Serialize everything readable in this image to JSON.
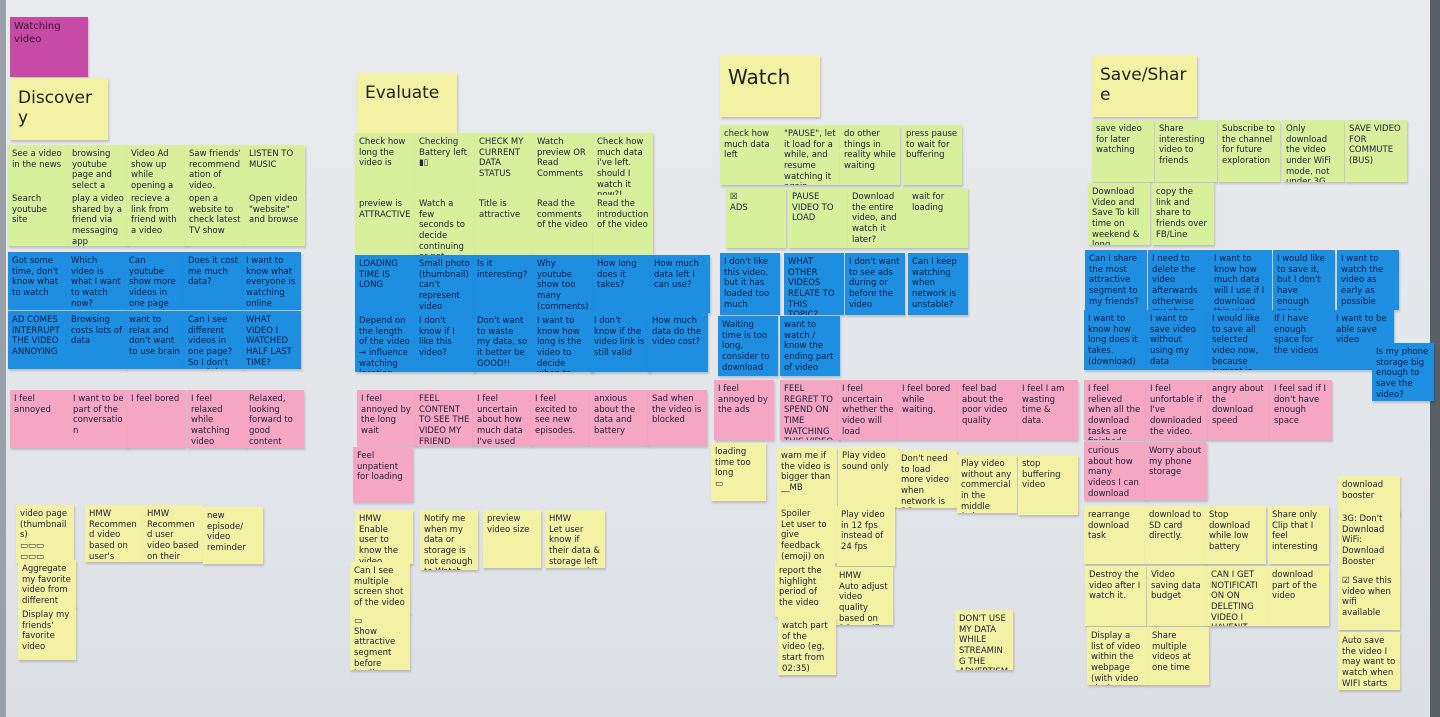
{
  "board": {
    "label": "Watching video",
    "label_color": "#c64aa6"
  },
  "colors": {
    "green": "#d8f09c",
    "blue": "#1e8fe0",
    "pink": "#f4a6c2",
    "yellow": "#f3f2a4"
  },
  "sections": [
    {
      "key": "discovery",
      "title": "Discovery",
      "notes": [
        {
          "text": "See a video in the news",
          "color": "green"
        },
        {
          "text": "browsing youtube page and select a video",
          "color": "green"
        },
        {
          "text": "Video Ad show up while opening a website",
          "color": "green"
        },
        {
          "text": "Saw friends' recommendation of video.",
          "color": "green"
        },
        {
          "text": "LISTEN TO MUSIC",
          "color": "green"
        },
        {
          "text": "Search youtube site",
          "color": "green"
        },
        {
          "text": "play a video shared by a friend via messaging app",
          "color": "green"
        },
        {
          "text": "recieve a link from friend with a video",
          "color": "green"
        },
        {
          "text": "open a website to check latest TV show",
          "color": "green"
        },
        {
          "text": "Open video \"website\" and browse",
          "color": "green"
        },
        {
          "text": "Got some time, don't know what to watch",
          "color": "blue"
        },
        {
          "text": "Which video is what I want to watch now?",
          "color": "blue"
        },
        {
          "text": "Can youtube show more videos in one page\nI can select quickly",
          "color": "blue"
        },
        {
          "text": "Does it cost me much data?",
          "color": "blue"
        },
        {
          "text": "I want to know what everyone is watching online",
          "color": "blue"
        },
        {
          "text": "AD COMES INTERRUPT THE VIDEO ANNOYING",
          "color": "blue"
        },
        {
          "text": "Browsing costs lots of data",
          "color": "blue"
        },
        {
          "text": "want to relax and don't want to use brain",
          "color": "blue"
        },
        {
          "text": "Can I see different videos in one page?\nSo I don't need the search site",
          "color": "blue"
        },
        {
          "text": "WHAT VIDEO I WATCHED HALF LAST TIME?",
          "color": "blue"
        },
        {
          "text": "I feel annoyed",
          "color": "pink"
        },
        {
          "text": "I want to be part of the conversation",
          "color": "pink"
        },
        {
          "text": "I feel bored",
          "color": "pink"
        },
        {
          "text": "I feel relaxed while watching video",
          "color": "pink"
        },
        {
          "text": "Relaxed, looking forward to good content",
          "color": "pink"
        },
        {
          "text": "video page (thumbnails)\n▭▭▭\n▭▭▭",
          "color": "yellow"
        },
        {
          "text": "Aggregate my favorite video from different sources",
          "color": "yellow"
        },
        {
          "text": "Display my friends' favorite video",
          "color": "yellow"
        },
        {
          "text": "HMW\nRecommend video based on user's interest",
          "color": "yellow"
        },
        {
          "text": "HMW\nRecommend user video based on their data left, storage left",
          "color": "yellow"
        },
        {
          "text": "new episode/ video reminder",
          "color": "yellow"
        }
      ]
    },
    {
      "key": "evaluate",
      "title": "Evaluate",
      "notes": [
        {
          "text": "Check how long the video is",
          "color": "green"
        },
        {
          "text": "Checking Battery left\n▮▯",
          "color": "green"
        },
        {
          "text": "CHECK MY CURRENT DATA STATUS",
          "color": "green"
        },
        {
          "text": "Watch preview OR Read Comments",
          "color": "green"
        },
        {
          "text": "Check how much data i've left.\nshould I watch it now?!",
          "color": "green"
        },
        {
          "text": "preview is ATTRACTIVE",
          "color": "green"
        },
        {
          "text": "Watch a few seconds to decide continuing or not",
          "color": "green"
        },
        {
          "text": "Title is attractive",
          "color": "green"
        },
        {
          "text": "Read the comments of the video",
          "color": "green"
        },
        {
          "text": "Read the introduction of the video",
          "color": "green"
        },
        {
          "text": "LOADING TIME IS LONG",
          "color": "blue"
        },
        {
          "text": "Small photo (thumbnail) can't represent video content",
          "color": "blue"
        },
        {
          "text": "Is it interesting?",
          "color": "blue"
        },
        {
          "text": "Why youtube show too many (comments) video I don't like → cost data",
          "color": "blue"
        },
        {
          "text": "How long does it takes?",
          "color": "blue"
        },
        {
          "text": "How much data left I can use?",
          "color": "blue"
        },
        {
          "text": "Depend on the length of the video → influence watching location (outside / home)",
          "color": "blue"
        },
        {
          "text": "I don't know if I like this video?",
          "color": "blue"
        },
        {
          "text": "Don't want to waste my data, so it better be GOOD!!",
          "color": "blue"
        },
        {
          "text": "I want to know how long is the video to decide when to watch it",
          "color": "blue"
        },
        {
          "text": "I don't know if the video link is still valid",
          "color": "blue"
        },
        {
          "text": "How much data do the video cost?",
          "color": "blue"
        },
        {
          "text": "I feel annoyed by the long wait",
          "color": "pink"
        },
        {
          "text": "FEEL CONTENT TO SEE THE VIDEO MY FRIEND SEND TO ME",
          "color": "pink"
        },
        {
          "text": "I feel uncertain about how much data I've used",
          "color": "pink"
        },
        {
          "text": "I feel excited to see new episodes.",
          "color": "pink"
        },
        {
          "text": "anxious about the data and battery",
          "color": "pink"
        },
        {
          "text": "Sad when the video is blocked",
          "color": "pink"
        },
        {
          "text": "Feel unpatient for loading",
          "color": "pink"
        },
        {
          "text": "HMW\nEnable user to know the video content without having to watch it all.",
          "color": "yellow"
        },
        {
          "text": "Can I see multiple screen shot of the video",
          "color": "yellow"
        },
        {
          "text": "▭\nShow attractive segment before loading",
          "color": "yellow"
        },
        {
          "text": "Notify me when my data or storage is not enough to Watch this video",
          "color": "yellow"
        },
        {
          "text": "preview video size",
          "color": "yellow"
        },
        {
          "text": "HMW\nLet user know if their data & storage left can watch this video?",
          "color": "yellow"
        }
      ]
    },
    {
      "key": "watch",
      "title": "Watch",
      "notes": [
        {
          "text": "check how much data left",
          "color": "green"
        },
        {
          "text": "\"PAUSE\", let it load for a while, and resume watching it again",
          "color": "green"
        },
        {
          "text": "do other things in reality while waiting",
          "color": "green"
        },
        {
          "text": "press pause to wait for buffering",
          "color": "green"
        },
        {
          "text": "☒\nADS",
          "color": "green"
        },
        {
          "text": "PAUSE VIDEO TO LOAD",
          "color": "green"
        },
        {
          "text": "Download the entire video, and watch it later?",
          "color": "green"
        },
        {
          "text": "wait for loading",
          "color": "green"
        },
        {
          "text": "I don't like this video, but it has loaded too much",
          "color": "blue"
        },
        {
          "text": "WHAT OTHER VIDEOS RELATE TO THIS TOPIC?",
          "color": "blue"
        },
        {
          "text": "I don't want to see ads during or before the video",
          "color": "blue"
        },
        {
          "text": "Can I keep watching when network is unstable?",
          "color": "blue"
        },
        {
          "text": "Waiting time is too long, consider to download",
          "color": "blue"
        },
        {
          "text": "want to watch / know the ending part of video",
          "color": "blue"
        },
        {
          "text": "I feel annoyed by the ads",
          "color": "pink"
        },
        {
          "text": "FEEL REGRET TO SPEND ON TIME WATCHING THIS VIDEO",
          "color": "pink"
        },
        {
          "text": "I feel uncertain whether the video will load",
          "color": "pink"
        },
        {
          "text": "I feel bored while waiting.",
          "color": "pink"
        },
        {
          "text": "feel bad about the poor video quality",
          "color": "pink"
        },
        {
          "text": "I feel I am wasting time & data.",
          "color": "pink"
        },
        {
          "text": "loading time too long\n▭",
          "color": "yellow"
        },
        {
          "text": "warn me if the video is bigger than __MB",
          "color": "yellow"
        },
        {
          "text": "Play video sound only",
          "color": "yellow"
        },
        {
          "text": "Don't need to load more video when network is 3G (Youtube)",
          "color": "yellow"
        },
        {
          "text": "Play video without any commercial in the middle (advance ad-block)",
          "color": "yellow"
        },
        {
          "text": "stop buffering video",
          "color": "yellow"
        },
        {
          "text": "Spoiler\nLet user to give feedback (emoji) on specific part of video",
          "color": "yellow"
        },
        {
          "text": "Play video in 12 fps instead of 24 fps",
          "color": "yellow"
        },
        {
          "text": "report the highlight period of the video",
          "color": "yellow"
        },
        {
          "text": "HMW\nAuto adjust video quality based on 3G or wifi",
          "color": "yellow"
        },
        {
          "text": "watch part of the video (eg, start from 02:35)",
          "color": "yellow"
        },
        {
          "text": "DON'T USE MY DATA WHILE STREAMING THE ADVERTISMENT",
          "color": "yellow"
        }
      ]
    },
    {
      "key": "save_share",
      "title": "Save/Share",
      "notes": [
        {
          "text": "save video for later watching",
          "color": "green"
        },
        {
          "text": "Share interesting video to friends",
          "color": "green"
        },
        {
          "text": "Subscribe to the channel for future exploration",
          "color": "green"
        },
        {
          "text": "Only download the video under WiFi mode, not under 3G mode",
          "color": "green"
        },
        {
          "text": "SAVE VIDEO FOR COMMUTE (BUS)",
          "color": "green"
        },
        {
          "text": "Download Video and Save To kill time on weekend & long distance travel",
          "color": "green"
        },
        {
          "text": "copy the link and share to friends over FB/Line",
          "color": "green"
        },
        {
          "text": "Can I share the most attractive segment to my friends?",
          "color": "blue"
        },
        {
          "text": "I need to delete the video afterwards otherwise my phone will be full soon.",
          "color": "blue"
        },
        {
          "text": "I want to know how much data will I use if I download this video",
          "color": "blue"
        },
        {
          "text": "I would like to save it, but I don't have enough space",
          "color": "blue"
        },
        {
          "text": "I want to watch the video as early as possible",
          "color": "blue"
        },
        {
          "text": "I want to know how long does it takes. (download)",
          "color": "blue"
        },
        {
          "text": "I want to save video without using my data",
          "color": "blue"
        },
        {
          "text": "I would like to save all selected video now, because current is WiFi network",
          "color": "blue"
        },
        {
          "text": "If I have enough space for the videos",
          "color": "blue"
        },
        {
          "text": "I want to be able save video",
          "color": "blue"
        },
        {
          "text": "Is my phone storage big enough to save the video?",
          "color": "blue"
        },
        {
          "text": "I feel relieved when all the download tasks are finished",
          "color": "pink"
        },
        {
          "text": "I feel unfortable if I've downloaded the video.",
          "color": "pink"
        },
        {
          "text": "angry about the download speed",
          "color": "pink"
        },
        {
          "text": "I feel sad if I don't have enough space",
          "color": "pink"
        },
        {
          "text": "curious about how many videos I can download",
          "color": "pink"
        },
        {
          "text": "Worry about my phone storage",
          "color": "pink"
        },
        {
          "text": "rearrange download task",
          "color": "yellow"
        },
        {
          "text": "download to SD card directly.",
          "color": "yellow"
        },
        {
          "text": "Stop download while low battery",
          "color": "yellow"
        },
        {
          "text": "Share only Clip that I feel interesting",
          "color": "yellow"
        },
        {
          "text": "Destroy the video after I watch it.",
          "color": "yellow"
        },
        {
          "text": "Video saving data budget",
          "color": "yellow"
        },
        {
          "text": "CAN I GET NOTIFICATION ON DELETING VIDEO I HAVEN'T WATCHED FOR A LONG TIME.",
          "color": "yellow"
        },
        {
          "text": "download part of the video",
          "color": "yellow"
        },
        {
          "text": "Display a list of video within the webpage (with video size)",
          "color": "yellow"
        },
        {
          "text": "Share multiple videos at one time",
          "color": "yellow"
        },
        {
          "text": "download booster",
          "color": "yellow"
        },
        {
          "text": "3G: Don't Download\nWiFi: Download Booster",
          "color": "yellow"
        },
        {
          "text": "☑ Save this video when wifi available",
          "color": "yellow"
        },
        {
          "text": "Auto save the video I may want to watch when WIFI starts",
          "color": "yellow"
        }
      ]
    }
  ]
}
